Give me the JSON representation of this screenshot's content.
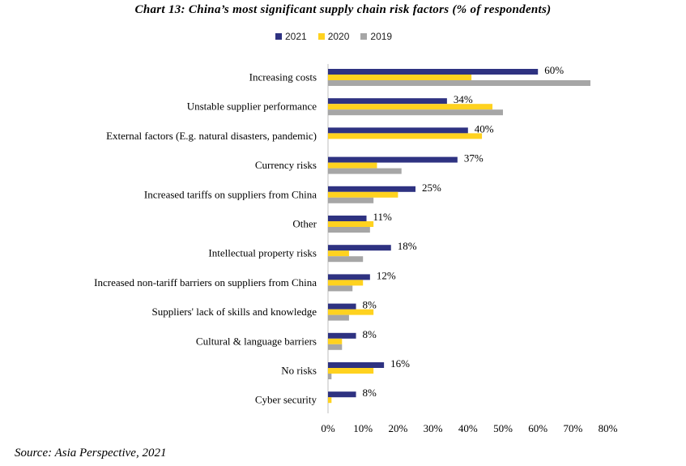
{
  "title": "Chart 13: China’s most significant supply chain risk factors (% of respondents)",
  "source": "Source: Asia Perspective, 2021",
  "legend": [
    {
      "label": "2021",
      "color": "#2E3281"
    },
    {
      "label": "2020",
      "color": "#FFD21F"
    },
    {
      "label": "2019",
      "color": "#A6A6A6"
    }
  ],
  "chart_data": {
    "type": "bar",
    "orientation": "horizontal",
    "title": "Chart 13: China’s most significant supply chain risk factors (% of respondents)",
    "xlabel": "",
    "ylabel": "",
    "xlim": [
      0,
      80
    ],
    "x_ticks": [
      "0%",
      "10%",
      "20%",
      "30%",
      "40%",
      "50%",
      "60%",
      "70%",
      "80%"
    ],
    "grid": false,
    "legend_position": "top",
    "categories": [
      "Increasing costs",
      "Unstable supplier performance",
      "External factors (E.g. natural disasters, pandemic)",
      "Currency risks",
      "Increased tariffs on suppliers from China",
      "Other",
      "Intellectual property risks",
      "Increased non-tariff barriers on suppliers from China",
      "Suppliers' lack of skills and knowledge",
      "Cultural & language barriers",
      "No risks",
      "Cyber security"
    ],
    "series": [
      {
        "name": "2021",
        "color": "#2E3281",
        "values": [
          60,
          34,
          40,
          37,
          25,
          11,
          18,
          12,
          8,
          8,
          16,
          8
        ],
        "labels": [
          "60%",
          "34%",
          "40%",
          "37%",
          "25%",
          "11%",
          "18%",
          "12%",
          "8%",
          "8%",
          "16%",
          "8%"
        ]
      },
      {
        "name": "2020",
        "color": "#FFD21F",
        "values": [
          41,
          47,
          44,
          14,
          20,
          13,
          6,
          10,
          13,
          4,
          13,
          1
        ]
      },
      {
        "name": "2019",
        "color": "#A6A6A6",
        "values": [
          75,
          50,
          0,
          21,
          13,
          12,
          10,
          7,
          6,
          4,
          1,
          0
        ]
      }
    ]
  }
}
